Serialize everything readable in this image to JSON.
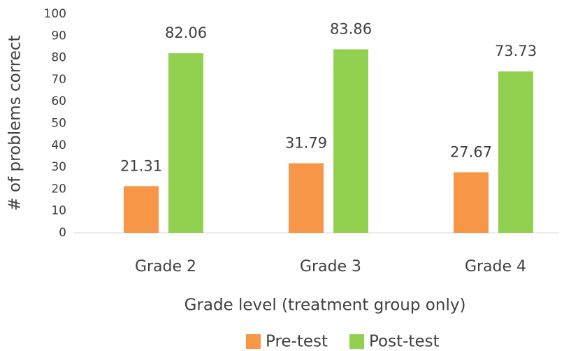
{
  "chart_data": {
    "type": "bar",
    "categories": [
      "Grade 2",
      "Grade 3",
      "Grade 4"
    ],
    "series": [
      {
        "name": "Pre-test",
        "color": "#f79646",
        "values": [
          21.31,
          31.79,
          27.67
        ]
      },
      {
        "name": "Post-test",
        "color": "#92d050",
        "values": [
          82.06,
          83.86,
          73.73
        ]
      }
    ],
    "x_label": "Grade level (treatment group only)",
    "y_label": "# of problems correct",
    "ylim": [
      0,
      100
    ],
    "yticks": [
      0,
      10,
      20,
      30,
      40,
      50,
      60,
      70,
      80,
      90,
      100
    ],
    "grid": false,
    "legend": "bottom"
  }
}
